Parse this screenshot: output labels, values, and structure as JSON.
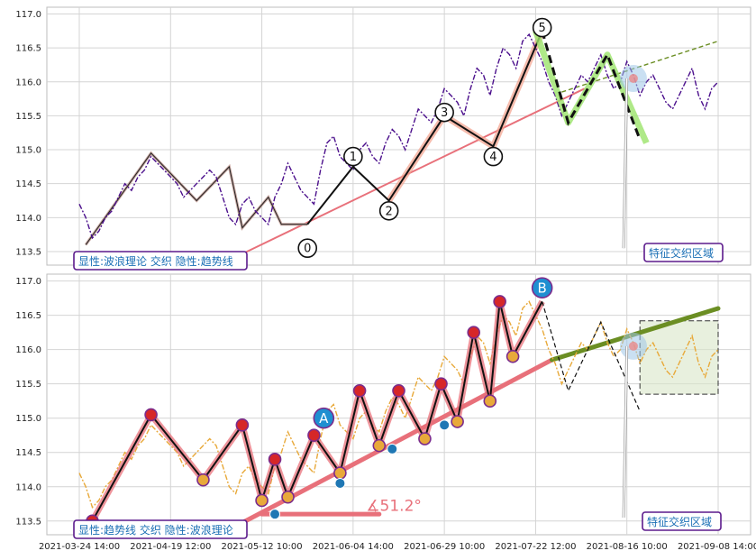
{
  "chart_data": [
    {
      "type": "line",
      "panel": "top",
      "title": "",
      "ylim": [
        113.3,
        117.1
      ],
      "yticks": [
        "113.5",
        "114.0",
        "114.5",
        "115.0",
        "115.5",
        "116.0",
        "116.5",
        "117.0"
      ],
      "grid": true,
      "caption": "显性:波浪理论 交织 隐性:趋势线",
      "region_label": "特征交织区域",
      "wave_labels": [
        "0",
        "1",
        "2",
        "3",
        "4",
        "5"
      ],
      "price_series": {
        "name": "price",
        "x": [
          0,
          2,
          4,
          6,
          8,
          10,
          12,
          14,
          16,
          18,
          20,
          22,
          24,
          26,
          28,
          30,
          32,
          34,
          36,
          38,
          40,
          42,
          44,
          46,
          48,
          50,
          52,
          54,
          56,
          58,
          60,
          62,
          64,
          66,
          68,
          70,
          72,
          74,
          76,
          78,
          80,
          82,
          84,
          86,
          88,
          90,
          92,
          94,
          96,
          98,
          100,
          102,
          104,
          106,
          108,
          110,
          112,
          114,
          116,
          118,
          120,
          122,
          124,
          126,
          128,
          130,
          132,
          134,
          136,
          138,
          140,
          142,
          144,
          146,
          148,
          150,
          152,
          154,
          156,
          158,
          160,
          162,
          164,
          166,
          168,
          170,
          172,
          174,
          176,
          178,
          180,
          182,
          184,
          186,
          188,
          190,
          192,
          194,
          196
        ],
        "values": [
          114.2,
          114.0,
          113.7,
          113.8,
          114.0,
          114.1,
          114.3,
          114.5,
          114.4,
          114.6,
          114.7,
          114.9,
          114.8,
          114.7,
          114.6,
          114.5,
          114.3,
          114.4,
          114.5,
          114.6,
          114.7,
          114.6,
          114.3,
          114.0,
          113.9,
          114.2,
          114.3,
          114.1,
          114.0,
          113.9,
          114.3,
          114.5,
          114.8,
          114.6,
          114.4,
          114.3,
          114.2,
          114.7,
          115.1,
          115.2,
          114.9,
          114.8,
          114.7,
          115.0,
          115.1,
          114.9,
          114.8,
          115.1,
          115.3,
          115.2,
          115.0,
          115.3,
          115.6,
          115.5,
          115.4,
          115.6,
          115.9,
          115.8,
          115.7,
          115.5,
          115.9,
          116.2,
          116.1,
          115.8,
          116.2,
          116.5,
          116.4,
          116.2,
          116.6,
          116.7,
          116.5,
          116.3,
          116.0,
          115.8,
          115.5,
          115.7,
          115.9,
          116.1,
          116.0,
          116.2,
          116.4,
          116.1,
          115.9,
          116.0,
          116.3,
          116.1,
          115.8,
          116.0,
          116.1,
          115.9,
          115.7,
          115.6,
          115.8,
          116.0,
          116.2,
          115.8,
          115.6,
          115.9,
          116.0
        ]
      },
      "wave_path": {
        "x": [
          70,
          84,
          95,
          112,
          127,
          142
        ],
        "values": [
          113.9,
          114.75,
          114.25,
          115.5,
          115.05,
          116.75
        ]
      }
    },
    {
      "type": "line",
      "panel": "bottom",
      "title": "",
      "ylim": [
        113.3,
        117.1
      ],
      "yticks": [
        "113.5",
        "114.0",
        "114.5",
        "115.0",
        "115.5",
        "116.0",
        "116.5",
        "117.0"
      ],
      "grid": true,
      "caption": "显性:趋势线 交织 隐性:波浪理论",
      "region_label": "特征交织区域",
      "angle_label": "∡51.2°",
      "wave_labels": [
        "A",
        "B"
      ],
      "price_series": {
        "name": "price",
        "x": [
          0,
          2,
          4,
          6,
          8,
          10,
          12,
          14,
          16,
          18,
          20,
          22,
          24,
          26,
          28,
          30,
          32,
          34,
          36,
          38,
          40,
          42,
          44,
          46,
          48,
          50,
          52,
          54,
          56,
          58,
          60,
          62,
          64,
          66,
          68,
          70,
          72,
          74,
          76,
          78,
          80,
          82,
          84,
          86,
          88,
          90,
          92,
          94,
          96,
          98,
          100,
          102,
          104,
          106,
          108,
          110,
          112,
          114,
          116,
          118,
          120,
          122,
          124,
          126,
          128,
          130,
          132,
          134,
          136,
          138,
          140,
          142,
          144,
          146,
          148,
          150,
          152,
          154,
          156,
          158,
          160,
          162,
          164,
          166,
          168,
          170,
          172,
          174,
          176,
          178,
          180,
          182,
          184,
          186,
          188,
          190,
          192,
          194,
          196
        ],
        "values": [
          114.2,
          114.0,
          113.7,
          113.8,
          114.0,
          114.1,
          114.3,
          114.5,
          114.4,
          114.6,
          114.7,
          114.9,
          114.8,
          114.7,
          114.6,
          114.5,
          114.3,
          114.4,
          114.5,
          114.6,
          114.7,
          114.6,
          114.3,
          114.0,
          113.9,
          114.2,
          114.3,
          114.1,
          114.0,
          113.9,
          114.3,
          114.5,
          114.8,
          114.6,
          114.4,
          114.3,
          114.2,
          114.7,
          115.1,
          115.2,
          114.9,
          114.8,
          114.7,
          115.0,
          115.1,
          114.9,
          114.8,
          115.1,
          115.3,
          115.2,
          115.0,
          115.3,
          115.6,
          115.5,
          115.4,
          115.6,
          115.9,
          115.8,
          115.7,
          115.5,
          115.9,
          116.2,
          116.1,
          115.8,
          116.2,
          116.5,
          116.4,
          116.2,
          116.6,
          116.7,
          116.5,
          116.3,
          116.0,
          115.8,
          115.5,
          115.7,
          115.9,
          116.1,
          116.0,
          116.2,
          116.4,
          116.1,
          115.9,
          116.0,
          116.3,
          116.1,
          115.8,
          116.0,
          116.1,
          115.9,
          115.7,
          115.6,
          115.8,
          116.0,
          116.2,
          115.8,
          115.6,
          115.9,
          116.0
        ]
      },
      "zigzag_path": {
        "x": [
          4,
          22,
          38,
          50,
          56,
          60,
          64,
          72,
          80,
          86,
          92,
          98,
          106,
          111,
          116,
          121,
          126,
          129,
          133,
          142
        ],
        "values": [
          113.5,
          115.05,
          114.1,
          114.9,
          113.8,
          114.4,
          113.85,
          114.75,
          114.2,
          115.4,
          114.6,
          115.4,
          114.7,
          115.5,
          114.95,
          116.25,
          115.25,
          116.7,
          115.9,
          116.7
        ]
      }
    }
  ],
  "x_ticks": [
    "2021-03-24 14:00",
    "2021-04-19 12:00",
    "2021-05-12 10:00",
    "2021-06-04 14:00",
    "2021-06-29 10:00",
    "2021-07-22 12:00",
    "2021-08-16 10:00",
    "2021-09-08 14:00"
  ],
  "colors": {
    "price_top": "#4b0f8c",
    "price_bottom": "#e8a93a",
    "trendline": "#e8707a",
    "wave": "#111111",
    "wave_highlight": "#e8707a",
    "projection": "#6b8e23",
    "grid": "#d0d0d0",
    "caption_text": "#1a6fb5",
    "caption_border": "#5b1a8c"
  }
}
